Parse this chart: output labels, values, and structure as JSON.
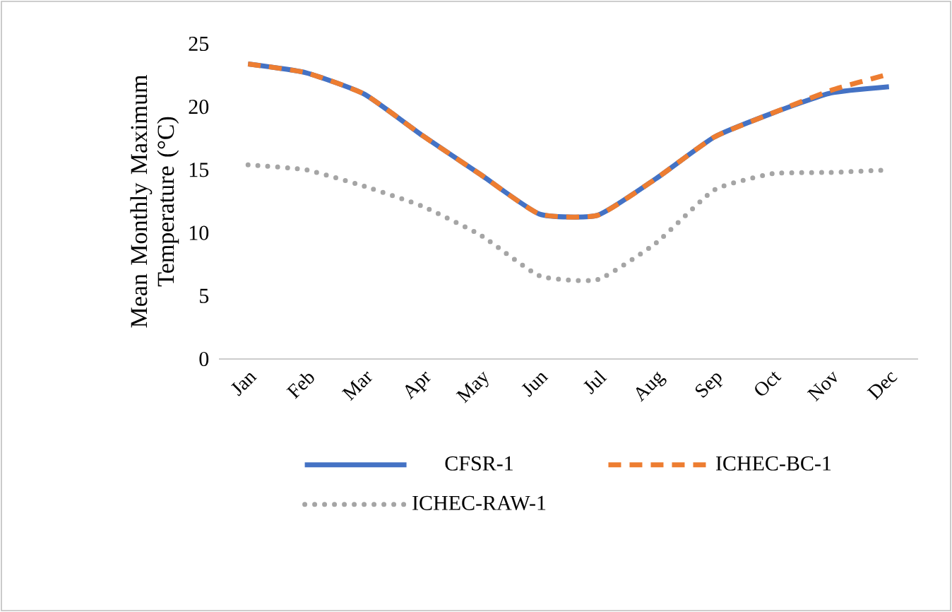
{
  "chart_data": {
    "type": "line",
    "ylabel": "Mean Monthly Maximum Temperature (°C)",
    "categories": [
      "Jan",
      "Feb",
      "Mar",
      "Apr",
      "May",
      "Jun",
      "Jul",
      "Aug",
      "Sep",
      "Oct",
      "Nov",
      "Dec"
    ],
    "series": [
      {
        "name": "CFSR-1",
        "color": "#4472c4",
        "line_style": "solid",
        "values": [
          23.4,
          22.7,
          21.0,
          17.7,
          14.6,
          11.5,
          11.4,
          14.3,
          17.6,
          19.5,
          21.1,
          21.6
        ]
      },
      {
        "name": "ICHEC-BC-1",
        "color": "#ed7d31",
        "line_style": "dashed",
        "values": [
          23.4,
          22.7,
          21.0,
          17.7,
          14.6,
          11.5,
          11.4,
          14.3,
          17.6,
          19.5,
          21.3,
          22.6
        ]
      },
      {
        "name": "ICHEC-RAW-1",
        "color": "#a5a5a5",
        "line_style": "dotted",
        "values": [
          15.4,
          15.0,
          13.7,
          12.1,
          9.8,
          6.6,
          6.3,
          9.2,
          13.4,
          14.7,
          14.8,
          15.0
        ]
      }
    ],
    "ylim": [
      0,
      25
    ],
    "yticks": [
      0,
      5,
      10,
      15,
      20,
      25
    ],
    "grid": false,
    "legend": "bottom",
    "marker": "none"
  }
}
